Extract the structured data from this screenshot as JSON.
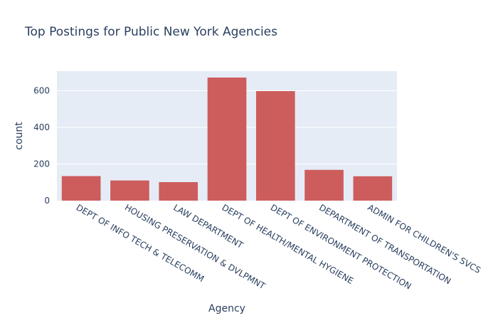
{
  "chart_data": {
    "type": "bar",
    "title": "Top Postings for Public New York Agencies",
    "xlabel": "Agency",
    "ylabel": "count",
    "categories": [
      "DEPT OF INFO TECH & TELECOMM",
      "HOUSING PRESERVATION & DVLPMNT",
      "LAW DEPARTMENT",
      "DEPT OF HEALTH/MENTAL HYGIENE",
      "DEPT OF ENVIRONMENT PROTECTION",
      "DEPARTMENT OF TRANSPORTATION",
      "ADMIN FOR CHILDREN'S SVCS"
    ],
    "values": [
      134,
      110,
      101,
      672,
      598,
      168,
      133
    ],
    "ylim": [
      0,
      707
    ],
    "yticks": [
      0,
      200,
      400,
      600
    ],
    "grid": true,
    "colors": {
      "bar": "#cd5c5c",
      "plot_bg": "#e5ecf6",
      "grid": "#ffffff",
      "text": "#2a3f5f"
    }
  }
}
